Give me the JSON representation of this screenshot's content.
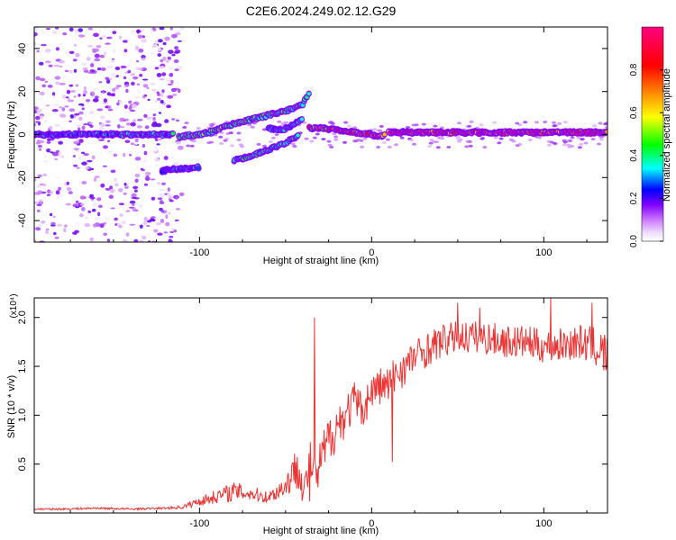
{
  "page": {
    "title": "C2E6.2024.249.02.12.G29"
  },
  "chart_data": [
    {
      "type": "heatmap",
      "title": "C2E6.2024.249.02.12.G29",
      "xlabel": "Height of straight line (km)",
      "ylabel": "Frequency (Hz)",
      "xlim": [
        -196,
        137
      ],
      "ylim": [
        -50,
        50
      ],
      "x_ticks": [
        -100,
        0,
        100
      ],
      "x_tick_labels": [
        "-100",
        "0",
        "100"
      ],
      "y_ticks": [
        -40,
        -20,
        0,
        20,
        40
      ],
      "y_tick_labels": [
        "-40",
        "-20",
        "0",
        "20",
        "40"
      ],
      "colorbar": {
        "label": "Normalized spectral amplitude",
        "range": [
          0,
          1
        ],
        "ticks": [
          0.0,
          0.2,
          0.4,
          0.6,
          0.8
        ],
        "tick_labels": [
          "0.0",
          "0.2",
          "0.4",
          "0.6",
          "0.8"
        ],
        "colors": [
          "#ffffff",
          "#cc77ff",
          "#8000ff",
          "#0000ff",
          "#00ffff",
          "#00ff00",
          "#ffff00",
          "#ff8000",
          "#ff0000",
          "#ff0080"
        ]
      },
      "ridges": [
        {
          "name": "main ridge",
          "amplitude": 0.35,
          "points": [
            [
              -196,
              0
            ],
            [
              -170,
              0
            ],
            [
              -150,
              0
            ],
            [
              -130,
              0
            ],
            [
              -115,
              0
            ]
          ]
        },
        {
          "name": "rising ridge",
          "amplitude": 0.45,
          "points": [
            [
              -112,
              -1
            ],
            [
              -100,
              0
            ],
            [
              -90,
              2
            ],
            [
              -80,
              5
            ],
            [
              -70,
              7
            ],
            [
              -60,
              9
            ],
            [
              -50,
              11
            ],
            [
              -40,
              14
            ],
            [
              -36,
              20
            ]
          ]
        },
        {
          "name": "lower branch",
          "amplitude": 0.35,
          "points": [
            [
              -60,
              3
            ],
            [
              -52,
              2
            ],
            [
              -45,
              5
            ],
            [
              -40,
              7
            ]
          ]
        },
        {
          "name": "secondary descending",
          "amplitude": 0.4,
          "points": [
            [
              -80,
              -12
            ],
            [
              -70,
              -10
            ],
            [
              -60,
              -7
            ],
            [
              -50,
              -4
            ],
            [
              -42,
              0
            ]
          ]
        },
        {
          "name": "side band",
          "amplitude": 0.3,
          "points": [
            [
              -122,
              -17
            ],
            [
              -115,
              -16
            ],
            [
              -105,
              -16
            ],
            [
              -100,
              -15
            ]
          ]
        },
        {
          "name": "transition",
          "amplitude": 0.75,
          "points": [
            [
              -36,
              3
            ],
            [
              -30,
              3
            ],
            [
              -20,
              2
            ],
            [
              -10,
              1
            ],
            [
              0,
              0
            ],
            [
              5,
              -1
            ],
            [
              8,
              0
            ]
          ]
        },
        {
          "name": "stable line",
          "amplitude": 0.9,
          "points": [
            [
              10,
              1
            ],
            [
              40,
              1
            ],
            [
              70,
              1
            ],
            [
              100,
              1
            ],
            [
              137,
              1
            ]
          ]
        }
      ],
      "noise_region": {
        "x_range": [
          -196,
          -110
        ],
        "y_range": [
          -50,
          50
        ],
        "amplitude_range": [
          0.0,
          0.2
        ]
      }
    },
    {
      "type": "line",
      "xlabel": "Height of straight line (km)",
      "ylabel": "SNR (10 * v/v)",
      "scale_note": "(x10⁴)",
      "xlim": [
        -196,
        137
      ],
      "ylim": [
        0,
        2.2
      ],
      "x_ticks": [
        -100,
        0,
        100
      ],
      "x_tick_labels": [
        "-100",
        "0",
        "100"
      ],
      "y_ticks": [
        0.5,
        1.0,
        1.5,
        2.0
      ],
      "y_tick_labels": [
        "0.5",
        "1.0",
        "1.5",
        "2.0"
      ],
      "color": "#ee3333",
      "series": [
        {
          "name": "SNR",
          "x": [
            -196,
            -180,
            -160,
            -140,
            -120,
            -110,
            -100,
            -90,
            -80,
            -70,
            -60,
            -50,
            -45,
            -42,
            -40,
            -35,
            -32,
            -30,
            -25,
            -20,
            -15,
            -10,
            -5,
            0,
            5,
            10,
            15,
            20,
            25,
            30,
            35,
            40,
            50,
            60,
            70,
            80,
            90,
            100,
            110,
            120,
            130,
            137
          ],
          "y": [
            0.04,
            0.04,
            0.05,
            0.04,
            0.05,
            0.06,
            0.12,
            0.17,
            0.22,
            0.2,
            0.16,
            0.28,
            0.42,
            0.55,
            0.2,
            0.5,
            0.3,
            0.5,
            0.75,
            0.9,
            1.0,
            1.15,
            1.05,
            1.25,
            1.3,
            1.3,
            1.45,
            1.5,
            1.6,
            1.65,
            1.7,
            1.75,
            1.8,
            1.8,
            1.78,
            1.75,
            1.75,
            1.7,
            1.72,
            1.75,
            1.7,
            1.6
          ],
          "noise": [
            0.01,
            0.01,
            0.01,
            0.01,
            0.01,
            0.02,
            0.05,
            0.07,
            0.1,
            0.08,
            0.06,
            0.12,
            0.2,
            0.3,
            0.12,
            0.3,
            0.15,
            0.25,
            0.25,
            0.25,
            0.22,
            0.2,
            0.18,
            0.2,
            0.2,
            0.22,
            0.2,
            0.2,
            0.18,
            0.18,
            0.18,
            0.17,
            0.17,
            0.17,
            0.17,
            0.17,
            0.17,
            0.17,
            0.17,
            0.18,
            0.2,
            0.25
          ],
          "spikes": [
            [
              -33,
              2.0
            ],
            [
              -36,
              0.12
            ],
            [
              12,
              0.52
            ],
            [
              50,
              2.15
            ],
            [
              63,
              2.1
            ],
            [
              104,
              2.2
            ],
            [
              128,
              2.15
            ]
          ]
        }
      ]
    }
  ]
}
